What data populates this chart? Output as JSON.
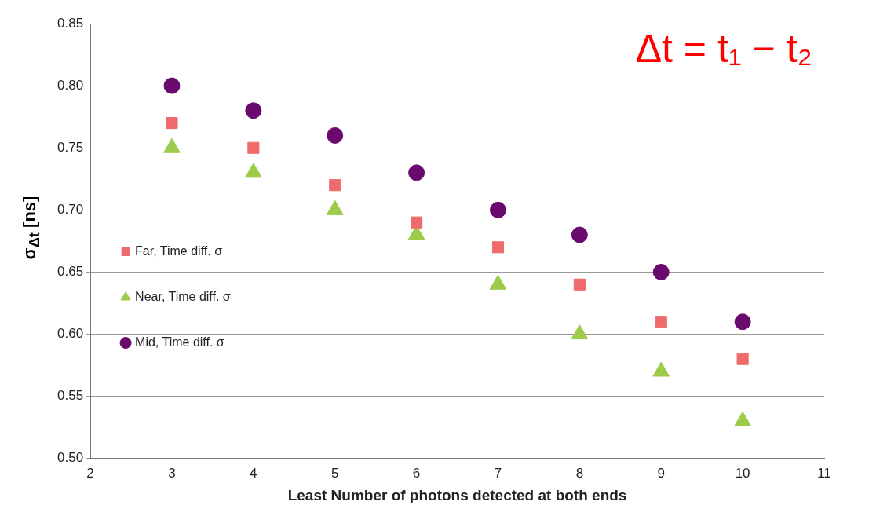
{
  "chart_data": {
    "type": "scatter",
    "xlabel": "Least Number of photons detected at both ends",
    "ylabel": "σ$_{Δt}$ [ns]",
    "annotations": [
      "Δt = t₁ − t₂"
    ],
    "xlim": [
      2,
      11
    ],
    "xticks": [
      2,
      3,
      4,
      5,
      6,
      7,
      8,
      9,
      10,
      11
    ],
    "ylim": [
      0.5,
      0.85
    ],
    "yticks": [
      {
        "value": 0.5,
        "label": "0.50"
      },
      {
        "value": 0.55,
        "label": "0.55"
      },
      {
        "value": 0.6,
        "label": "0.60"
      },
      {
        "value": 0.65,
        "label": "0.65"
      },
      {
        "value": 0.7,
        "label": "0.70"
      },
      {
        "value": 0.75,
        "label": "0.75"
      },
      {
        "value": 0.8,
        "label": "0.80"
      },
      {
        "value": 0.85,
        "label": "0.85"
      }
    ],
    "grid": "y",
    "legend": "left",
    "x": [
      3,
      4,
      5,
      6,
      7,
      8,
      9,
      10
    ],
    "series": [
      {
        "name": "Far, Time diff. σ",
        "color": "#ef6b6b",
        "marker": "square",
        "values": [
          0.77,
          0.75,
          0.72,
          0.69,
          0.67,
          0.64,
          0.61,
          0.58
        ]
      },
      {
        "name": "Near, Time diff. σ",
        "color": "#9dcc4c",
        "marker": "triangle",
        "values": [
          0.75,
          0.73,
          0.7,
          0.68,
          0.64,
          0.6,
          0.57,
          0.53
        ]
      },
      {
        "name": "Mid, Time diff. σ",
        "color": "#6b0a6e",
        "marker": "circle",
        "values": [
          0.8,
          0.78,
          0.76,
          0.73,
          0.7,
          0.68,
          0.65,
          0.61
        ]
      }
    ]
  }
}
